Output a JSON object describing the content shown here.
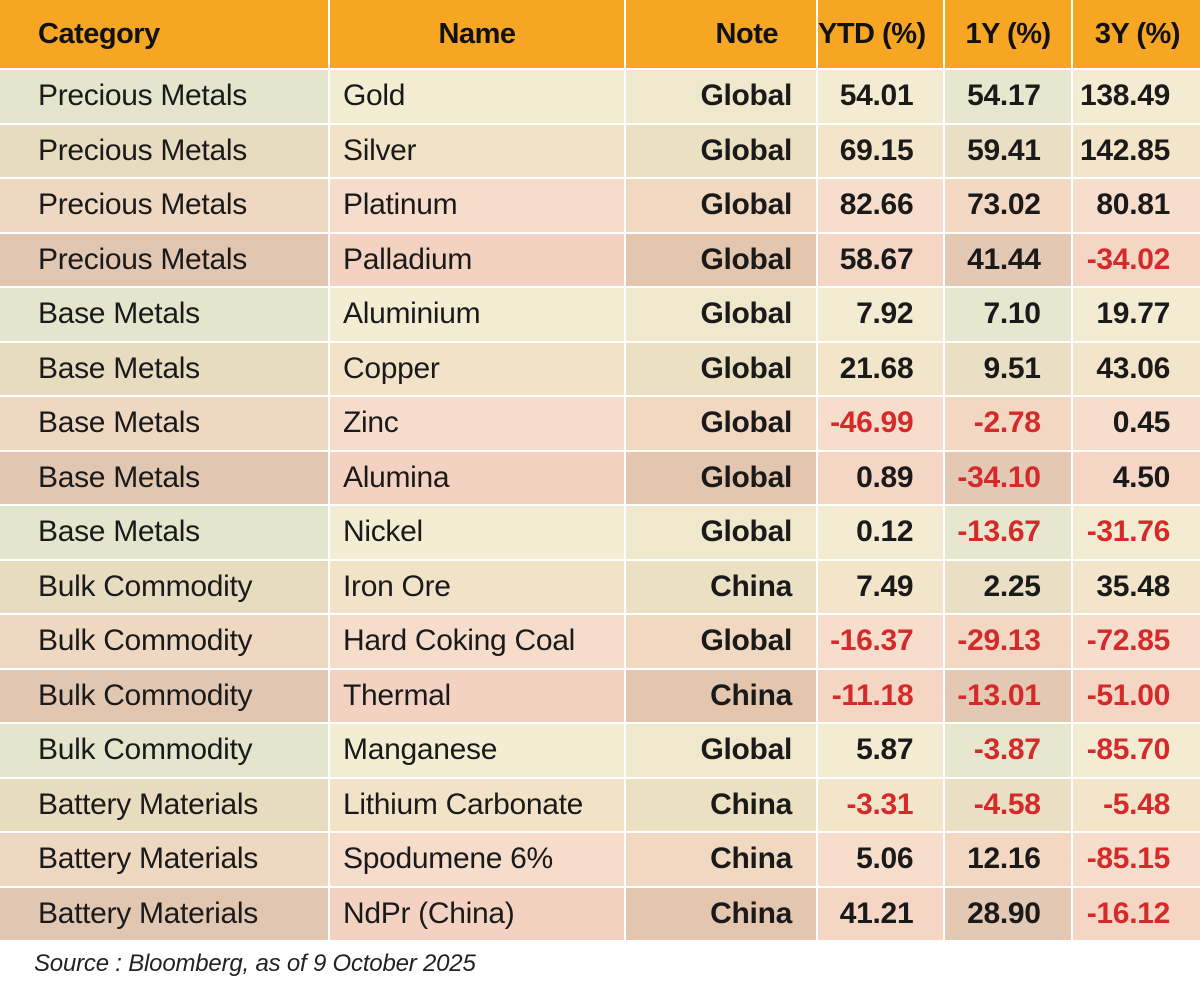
{
  "chart_data": {
    "type": "table",
    "columns": [
      "Category",
      "Name",
      "Note",
      "YTD (%)",
      "1Y (%)",
      "3Y (%)"
    ],
    "rows": [
      {
        "category": "Precious Metals",
        "name": "Gold",
        "note": "Global",
        "ytd": "54.01",
        "y1": "54.17",
        "y3": "138.49"
      },
      {
        "category": "Precious Metals",
        "name": "Silver",
        "note": "Global",
        "ytd": "69.15",
        "y1": "59.41",
        "y3": "142.85"
      },
      {
        "category": "Precious Metals",
        "name": "Platinum",
        "note": "Global",
        "ytd": "82.66",
        "y1": "73.02",
        "y3": "80.81"
      },
      {
        "category": "Precious Metals",
        "name": "Palladium",
        "note": "Global",
        "ytd": "58.67",
        "y1": "41.44",
        "y3": "-34.02"
      },
      {
        "category": "Base Metals",
        "name": "Aluminium",
        "note": "Global",
        "ytd": "7.92",
        "y1": "7.10",
        "y3": "19.77"
      },
      {
        "category": "Base Metals",
        "name": "Copper",
        "note": "Global",
        "ytd": "21.68",
        "y1": "9.51",
        "y3": "43.06"
      },
      {
        "category": "Base Metals",
        "name": "Zinc",
        "note": "Global",
        "ytd": "-46.99",
        "y1": "-2.78",
        "y3": "0.45"
      },
      {
        "category": "Base Metals",
        "name": "Alumina",
        "note": "Global",
        "ytd": "0.89",
        "y1": "-34.10",
        "y3": "4.50"
      },
      {
        "category": "Base Metals",
        "name": "Nickel",
        "note": "Global",
        "ytd": "0.12",
        "y1": "-13.67",
        "y3": "-31.76"
      },
      {
        "category": "Bulk Commodity",
        "name": "Iron Ore",
        "note": "China",
        "ytd": "7.49",
        "y1": "2.25",
        "y3": "35.48"
      },
      {
        "category": "Bulk Commodity",
        "name": "Hard Coking Coal",
        "note": "Global",
        "ytd": "-16.37",
        "y1": "-29.13",
        "y3": "-72.85"
      },
      {
        "category": "Bulk Commodity",
        "name": "Thermal",
        "note": "China",
        "ytd": "-11.18",
        "y1": "-13.01",
        "y3": "-51.00"
      },
      {
        "category": "Bulk Commodity",
        "name": "Manganese",
        "note": "Global",
        "ytd": "5.87",
        "y1": "-3.87",
        "y3": "-85.70"
      },
      {
        "category": "Battery Materials",
        "name": "Lithium Carbonate",
        "note": "China",
        "ytd": "-3.31",
        "y1": "-4.58",
        "y3": "-5.48"
      },
      {
        "category": "Battery Materials",
        "name": "Spodumene 6%",
        "note": "China",
        "ytd": "5.06",
        "y1": "12.16",
        "y3": "-85.15"
      },
      {
        "category": "Battery Materials",
        "name": "NdPr (China)",
        "note": "China",
        "ytd": "41.21",
        "y1": "28.90",
        "y3": "-16.12"
      }
    ],
    "source": "Source : Bloomberg, as of 9 October 2025"
  },
  "colors": {
    "header_bg": "#f7a623",
    "negative": "#d42a2a",
    "text": "#1a1a1a"
  }
}
